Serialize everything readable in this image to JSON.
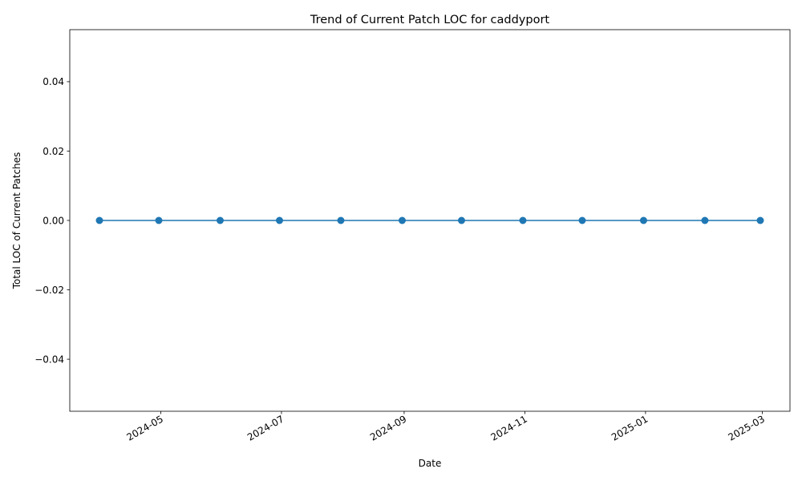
{
  "chart_data": {
    "type": "line",
    "title": "Trend of Current Patch LOC for caddyport",
    "xlabel": "Date",
    "ylabel": "Total LOC of Current Patches",
    "x_dates": [
      "2024-03-31",
      "2024-04-30",
      "2024-05-31",
      "2024-06-30",
      "2024-07-31",
      "2024-08-31",
      "2024-09-30",
      "2024-10-31",
      "2024-11-30",
      "2024-12-31",
      "2025-01-31",
      "2025-02-28"
    ],
    "series": [
      {
        "values": [
          0,
          0,
          0,
          0,
          0,
          0,
          0,
          0,
          0,
          0,
          0,
          0
        ],
        "color": "#1f77b4"
      }
    ],
    "x_ticks": [
      {
        "date": "2024-05-01",
        "label": "2024-05"
      },
      {
        "date": "2024-07-01",
        "label": "2024-07"
      },
      {
        "date": "2024-09-01",
        "label": "2024-09"
      },
      {
        "date": "2024-11-01",
        "label": "2024-11"
      },
      {
        "date": "2025-01-01",
        "label": "2025-01"
      },
      {
        "date": "2025-03-01",
        "label": "2025-03"
      }
    ],
    "xlim": [
      "2024-03-16",
      "2025-03-15"
    ],
    "y_ticks": [
      {
        "value": 0.04,
        "label": "0.04"
      },
      {
        "value": 0.02,
        "label": "0.02"
      },
      {
        "value": 0.0,
        "label": "0.00"
      },
      {
        "value": -0.02,
        "label": "−0.02"
      },
      {
        "value": -0.04,
        "label": "−0.04"
      }
    ],
    "ylim": [
      -0.055,
      0.055
    ],
    "grid": false,
    "legend": "none"
  }
}
